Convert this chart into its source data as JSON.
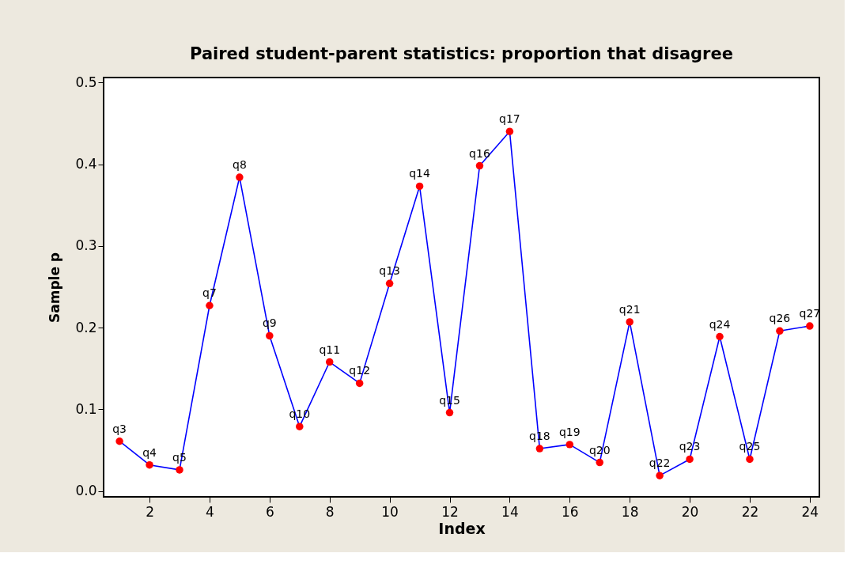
{
  "chart_data": {
    "type": "line",
    "title": "Paired student-parent statistics: proportion that disagree",
    "xlabel": "Index",
    "ylabel": "Sample p",
    "x": [
      1,
      2,
      3,
      4,
      5,
      6,
      7,
      8,
      9,
      10,
      11,
      12,
      13,
      14,
      15,
      16,
      17,
      18,
      19,
      20,
      21,
      22,
      23,
      24
    ],
    "series": [
      {
        "color": "#0000ff",
        "colors": [
          "#ff0000",
          "#ff0000",
          "#ff0000",
          "#ff0000",
          "#ff0000",
          "#ff0000",
          "#ff0000",
          "#ff0000",
          "#ff0000",
          "#ff0000",
          "#ff0000",
          "#ff0000",
          "#ff0000",
          "#ff0000",
          "#ff0000",
          "#ff0000",
          "#ff0000",
          "#ff0000",
          "#ff0000",
          "#ff0000",
          "#ff0000",
          "#ff0000",
          "#ff0000",
          "#ff0000"
        ],
        "values": [
          0.061,
          0.032,
          0.026,
          0.227,
          0.384,
          0.19,
          0.079,
          0.158,
          0.132,
          0.254,
          0.373,
          0.096,
          0.398,
          0.44,
          0.052,
          0.057,
          0.035,
          0.207,
          0.019,
          0.039,
          0.189,
          0.039,
          0.196,
          0.202
        ],
        "value_labels": [
          "q3",
          "q4",
          "q5",
          "q7",
          "q8",
          "q9",
          "q10",
          "q11",
          "q12",
          "q13",
          "q14",
          "q15",
          "q16",
          "q17",
          "q18",
          "q19",
          "q20",
          "q21",
          "q22",
          "q23",
          "q24",
          "q25",
          "q26",
          "q27"
        ]
      }
    ],
    "xlim": [
      0.47,
      24.32
    ],
    "ylim": [
      -0.007,
      0.506
    ],
    "xticks": [
      2,
      4,
      6,
      8,
      10,
      12,
      14,
      16,
      18,
      20,
      22,
      24
    ],
    "yticks": [
      {
        "value": 0,
        "label": "0.0"
      },
      {
        "value": 0.1,
        "label": "0.1"
      },
      {
        "value": 0.2,
        "label": "0.2"
      },
      {
        "value": 0.3,
        "label": "0.3"
      },
      {
        "value": 0.4,
        "label": "0.4"
      },
      {
        "value": 0.5,
        "label": "0.5"
      }
    ],
    "grid": false,
    "marker": "circle",
    "line_style": "solid"
  }
}
